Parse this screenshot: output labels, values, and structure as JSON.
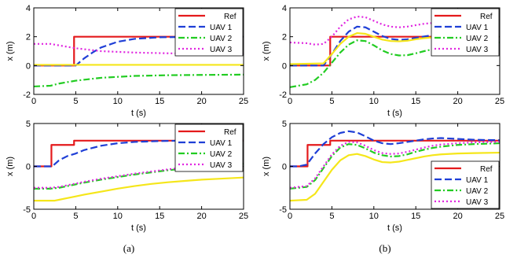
{
  "captions": {
    "left": "(a)",
    "right": "(b)"
  },
  "colors": {
    "ref": "#e41a1c",
    "uav1": "#1f3fd6",
    "uav2": "#22cc22",
    "uav3": "#e026e0",
    "extra": "#f5e61a"
  },
  "chart_data": [
    {
      "type": "line",
      "xlabel": "t (s)",
      "ylabel": "x (m)",
      "xlim": [
        0,
        25
      ],
      "ylim": [
        -2,
        4
      ],
      "xticks": [
        0,
        5,
        10,
        15,
        20,
        25
      ],
      "yticks": [
        -2,
        0,
        2,
        4
      ],
      "legend": "top-right",
      "series": [
        {
          "name": "Ref",
          "color": "#e41a1c",
          "dash": "solid",
          "x": [
            0,
            4.8,
            4.8,
            25
          ],
          "y": [
            0,
            0,
            2,
            2
          ]
        },
        {
          "name": "UAV 1",
          "color": "#1f3fd6",
          "dash": "dash",
          "x": [
            0,
            5,
            6,
            7,
            8,
            10,
            12,
            15,
            20,
            25
          ],
          "y": [
            0,
            0,
            0.5,
            0.9,
            1.25,
            1.65,
            1.85,
            1.96,
            2.0,
            2.0
          ]
        },
        {
          "name": "UAV 2",
          "color": "#22cc22",
          "dash": "dashdot",
          "x": [
            0,
            2,
            3,
            5,
            8,
            12,
            16,
            20,
            25
          ],
          "y": [
            -1.45,
            -1.4,
            -1.25,
            -1.05,
            -0.85,
            -0.72,
            -0.67,
            -0.65,
            -0.63
          ]
        },
        {
          "name": "UAV 3",
          "color": "#e026e0",
          "dash": "dot",
          "x": [
            0,
            2,
            3,
            5,
            8,
            12,
            16,
            20,
            25
          ],
          "y": [
            1.5,
            1.5,
            1.4,
            1.2,
            1.0,
            0.9,
            0.85,
            0.82,
            0.8
          ]
        },
        {
          "name": "",
          "color": "#f5e61a",
          "dash": "solid",
          "x": [
            0,
            25
          ],
          "y": [
            0.05,
            0.05
          ]
        }
      ]
    },
    {
      "type": "line",
      "xlabel": "t (s)",
      "ylabel": "x (m)",
      "xlim": [
        0,
        25
      ],
      "ylim": [
        -2,
        4
      ],
      "xticks": [
        0,
        5,
        10,
        15,
        20,
        25
      ],
      "yticks": [
        -2,
        0,
        2,
        4
      ],
      "legend": "top-right",
      "series": [
        {
          "name": "Ref",
          "color": "#e41a1c",
          "dash": "solid",
          "x": [
            0,
            4.8,
            4.8,
            25
          ],
          "y": [
            0,
            0,
            2,
            2
          ]
        },
        {
          "name": "UAV 1",
          "color": "#1f3fd6",
          "dash": "dash",
          "x": [
            0,
            4,
            5,
            6,
            7,
            8,
            9,
            10,
            11,
            12,
            13,
            14,
            15,
            16,
            17,
            18,
            20,
            22,
            25
          ],
          "y": [
            0,
            0,
            0.8,
            1.7,
            2.35,
            2.7,
            2.65,
            2.35,
            2.05,
            1.85,
            1.78,
            1.82,
            1.92,
            2.02,
            2.1,
            2.12,
            2.08,
            2.02,
            2.0
          ]
        },
        {
          "name": "UAV 2",
          "color": "#22cc22",
          "dash": "dashdot",
          "x": [
            0,
            2,
            3,
            4,
            5,
            6,
            7,
            8,
            9,
            10,
            11,
            12,
            13,
            14,
            15,
            16,
            18,
            20,
            22,
            25
          ],
          "y": [
            -1.5,
            -1.3,
            -1.0,
            -0.5,
            0.2,
            0.9,
            1.45,
            1.75,
            1.7,
            1.4,
            1.05,
            0.8,
            0.7,
            0.72,
            0.85,
            1.0,
            1.25,
            1.45,
            1.55,
            1.6
          ]
        },
        {
          "name": "UAV 3",
          "color": "#e026e0",
          "dash": "dot",
          "x": [
            0,
            2,
            3,
            4,
            5,
            6,
            7,
            8,
            9,
            10,
            11,
            12,
            13,
            14,
            15,
            16,
            18,
            20,
            22,
            25
          ],
          "y": [
            1.6,
            1.55,
            1.45,
            1.5,
            2.0,
            2.7,
            3.2,
            3.4,
            3.35,
            3.1,
            2.85,
            2.7,
            2.65,
            2.7,
            2.8,
            2.9,
            3.0,
            3.05,
            3.05,
            3.05
          ]
        },
        {
          "name": "",
          "color": "#f5e61a",
          "dash": "solid",
          "x": [
            0,
            4,
            5,
            6,
            7,
            8,
            9,
            10,
            11,
            12,
            13,
            14,
            15,
            16,
            18,
            20,
            22,
            25
          ],
          "y": [
            0.1,
            0.15,
            0.8,
            1.5,
            2.0,
            2.25,
            2.2,
            2.0,
            1.8,
            1.7,
            1.68,
            1.72,
            1.82,
            1.9,
            2.0,
            2.02,
            2.0,
            2.0
          ]
        }
      ]
    },
    {
      "type": "line",
      "xlabel": "t (s)",
      "ylabel": "x (m)",
      "xlim": [
        0,
        25
      ],
      "ylim": [
        -5,
        5
      ],
      "xticks": [
        0,
        5,
        10,
        15,
        20,
        25
      ],
      "yticks": [
        -5,
        0,
        5
      ],
      "legend": "top-right",
      "series": [
        {
          "name": "Ref",
          "color": "#e41a1c",
          "dash": "solid",
          "x": [
            0,
            2.1,
            2.1,
            4.8,
            4.8,
            25
          ],
          "y": [
            0,
            0,
            2.5,
            2.5,
            3,
            3
          ]
        },
        {
          "name": "UAV 1",
          "color": "#1f3fd6",
          "dash": "dash",
          "x": [
            0,
            2.2,
            3,
            4,
            5,
            6,
            8,
            10,
            12,
            15,
            18,
            20,
            25
          ],
          "y": [
            0,
            0,
            0.7,
            1.2,
            1.5,
            1.9,
            2.4,
            2.7,
            2.85,
            2.95,
            3.0,
            3.0,
            3.0
          ]
        },
        {
          "name": "UAV 2",
          "color": "#22cc22",
          "dash": "dashdot",
          "x": [
            0,
            2,
            3,
            4,
            5,
            6,
            8,
            10,
            12,
            14,
            16,
            18,
            20,
            22,
            25
          ],
          "y": [
            -2.6,
            -2.6,
            -2.5,
            -2.3,
            -2.1,
            -1.9,
            -1.55,
            -1.25,
            -0.95,
            -0.7,
            -0.45,
            -0.25,
            -0.05,
            0.1,
            0.3
          ]
        },
        {
          "name": "UAV 3",
          "color": "#e026e0",
          "dash": "dot",
          "x": [
            0,
            2,
            3,
            4,
            5,
            6,
            8,
            10,
            12,
            14,
            16,
            18,
            20,
            22,
            25
          ],
          "y": [
            -2.5,
            -2.5,
            -2.4,
            -2.2,
            -2.0,
            -1.8,
            -1.45,
            -1.15,
            -0.85,
            -0.6,
            -0.35,
            -0.15,
            0.05,
            0.2,
            0.4
          ]
        },
        {
          "name": "",
          "color": "#f5e61a",
          "dash": "solid",
          "x": [
            0,
            2.5,
            3,
            4,
            5,
            6,
            8,
            10,
            12,
            14,
            16,
            18,
            20,
            22,
            25
          ],
          "y": [
            -4.0,
            -4.0,
            -3.9,
            -3.7,
            -3.5,
            -3.3,
            -2.95,
            -2.6,
            -2.3,
            -2.05,
            -1.85,
            -1.7,
            -1.55,
            -1.45,
            -1.3
          ]
        }
      ]
    },
    {
      "type": "line",
      "xlabel": "t (s)",
      "ylabel": "x (m)",
      "xlim": [
        0,
        25
      ],
      "ylim": [
        -5,
        5
      ],
      "xticks": [
        0,
        5,
        10,
        15,
        20,
        25
      ],
      "yticks": [
        -5,
        0,
        5
      ],
      "legend": "bottom-right",
      "series": [
        {
          "name": "Ref",
          "color": "#e41a1c",
          "dash": "solid",
          "x": [
            0,
            2.1,
            2.1,
            4.8,
            4.8,
            25
          ],
          "y": [
            0,
            0,
            2.5,
            2.5,
            3,
            3
          ]
        },
        {
          "name": "UAV 1",
          "color": "#1f3fd6",
          "dash": "dash",
          "x": [
            0,
            1,
            2,
            3,
            4,
            5,
            6,
            7,
            8,
            9,
            10,
            11,
            12,
            13,
            14,
            15,
            16,
            17,
            18,
            20,
            22,
            25
          ],
          "y": [
            0,
            0,
            0.2,
            1.5,
            2.6,
            3.4,
            3.9,
            4.1,
            3.95,
            3.5,
            3.0,
            2.7,
            2.6,
            2.7,
            2.85,
            3.0,
            3.15,
            3.25,
            3.3,
            3.2,
            3.1,
            3.05
          ]
        },
        {
          "name": "UAV 2",
          "color": "#22cc22",
          "dash": "dashdot",
          "x": [
            0,
            2,
            3,
            4,
            5,
            6,
            7,
            8,
            9,
            10,
            11,
            12,
            13,
            14,
            15,
            16,
            17,
            18,
            20,
            22,
            25
          ],
          "y": [
            -2.6,
            -2.4,
            -1.6,
            -0.2,
            1.2,
            2.2,
            2.6,
            2.5,
            2.1,
            1.6,
            1.3,
            1.15,
            1.2,
            1.4,
            1.7,
            1.95,
            2.15,
            2.3,
            2.5,
            2.6,
            2.7
          ]
        },
        {
          "name": "UAV 3",
          "color": "#e026e0",
          "dash": "dot",
          "x": [
            0,
            2,
            3,
            4,
            5,
            6,
            7,
            8,
            9,
            10,
            11,
            12,
            13,
            14,
            15,
            16,
            17,
            18,
            20,
            22,
            25
          ],
          "y": [
            -2.5,
            -2.3,
            -1.4,
            0.0,
            1.4,
            2.4,
            2.85,
            2.8,
            2.4,
            1.9,
            1.55,
            1.45,
            1.5,
            1.7,
            1.95,
            2.2,
            2.4,
            2.55,
            2.7,
            2.8,
            2.85
          ]
        },
        {
          "name": "",
          "color": "#f5e61a",
          "dash": "solid",
          "x": [
            0,
            2,
            3,
            4,
            5,
            6,
            7,
            8,
            9,
            10,
            11,
            12,
            13,
            14,
            15,
            16,
            17,
            18,
            20,
            22,
            25
          ],
          "y": [
            -4.0,
            -3.9,
            -3.2,
            -1.8,
            -0.4,
            0.7,
            1.3,
            1.45,
            1.2,
            0.8,
            0.5,
            0.45,
            0.55,
            0.75,
            0.95,
            1.15,
            1.3,
            1.4,
            1.5,
            1.55,
            1.6
          ]
        }
      ]
    }
  ]
}
